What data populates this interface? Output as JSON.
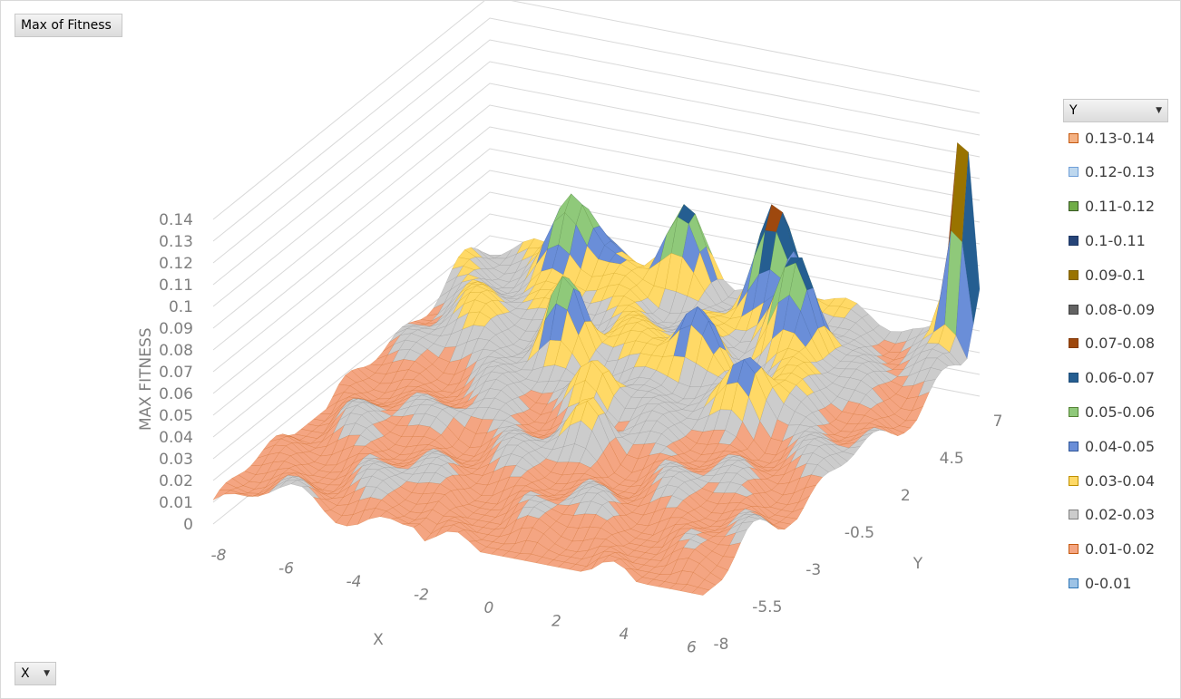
{
  "pivot": {
    "value_field": "Max of Fitness",
    "row_field": "X",
    "column_field": "Y"
  },
  "chart_data": {
    "type": "surface",
    "title": "",
    "zlabel": "MAX FITNESS",
    "xlabel": "X",
    "ylabel": "Y",
    "z_ticks": [
      "0",
      "0.01",
      "0.02",
      "0.03",
      "0.04",
      "0.05",
      "0.06",
      "0.07",
      "0.08",
      "0.09",
      "0.1",
      "0.11",
      "0.12",
      "0.13",
      "0.14"
    ],
    "x_ticks": [
      "-8",
      "-6",
      "-4",
      "-2",
      "0",
      "2",
      "4",
      "6"
    ],
    "y_ticks": [
      "-8",
      "-5.5",
      "-3",
      "-0.5",
      "2",
      "4.5",
      "7"
    ],
    "zlim": [
      0,
      0.14
    ],
    "legend_title": "Y",
    "legend_position": "right",
    "bands": [
      {
        "label": "0.13-0.14",
        "color": "#f4b183",
        "border": "#c55a11"
      },
      {
        "label": "0.12-0.13",
        "color": "#bdd7ee",
        "border": "#6f9fd8"
      },
      {
        "label": "0.11-0.12",
        "color": "#70ad47",
        "border": "#375623"
      },
      {
        "label": "0.1-0.11",
        "color": "#264478",
        "border": "#1f3864"
      },
      {
        "label": "0.09-0.1",
        "color": "#997300",
        "border": "#7f6000"
      },
      {
        "label": "0.08-0.09",
        "color": "#636363",
        "border": "#404040"
      },
      {
        "label": "0.07-0.08",
        "color": "#9e480e",
        "border": "#843c0c"
      },
      {
        "label": "0.06-0.07",
        "color": "#255e91",
        "border": "#1f4e79"
      },
      {
        "label": "0.05-0.06",
        "color": "#8fc97a",
        "border": "#548235"
      },
      {
        "label": "0.04-0.05",
        "color": "#6a8ed8",
        "border": "#2f5597"
      },
      {
        "label": "0.03-0.04",
        "color": "#ffd966",
        "border": "#bf9000"
      },
      {
        "label": "0.02-0.03",
        "color": "#cccccc",
        "border": "#7f7f7f"
      },
      {
        "label": "0.01-0.02",
        "color": "#f4a582",
        "border": "#c55a11"
      },
      {
        "label": "0-0.01",
        "color": "#9dc3e6",
        "border": "#2e75b6"
      }
    ],
    "peaks": [
      {
        "x": 6,
        "y": 7,
        "z": 0.14
      },
      {
        "x": -5,
        "y": 6,
        "z": 0.07
      },
      {
        "x": -2,
        "y": 6.5,
        "z": 0.065
      },
      {
        "x": 1,
        "y": 6,
        "z": 0.07
      },
      {
        "x": 2.5,
        "y": 4.5,
        "z": 0.07
      },
      {
        "x": -3,
        "y": 2,
        "z": 0.065
      },
      {
        "x": 0.5,
        "y": 2.5,
        "z": 0.06
      },
      {
        "x": -1,
        "y": 0,
        "z": 0.06
      },
      {
        "x": 3,
        "y": 1,
        "z": 0.06
      },
      {
        "x": 0,
        "y": -2,
        "z": 0.05
      },
      {
        "x": -4,
        "y": -2,
        "z": 0.04
      },
      {
        "x": -3,
        "y": -5,
        "z": 0.03
      }
    ]
  }
}
